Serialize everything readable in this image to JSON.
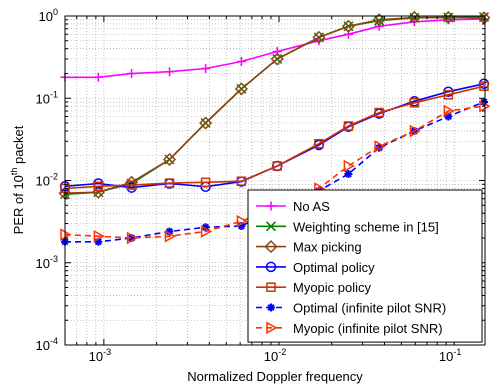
{
  "chart_data": {
    "type": "line",
    "xscale": "log",
    "yscale": "log",
    "xlim": [
      0.0006,
      0.15
    ],
    "ylim": [
      0.0001,
      1
    ],
    "xlabel": "Normalized Doppler frequency",
    "ylabel": "PER of 10th packet",
    "ylabel_parts": {
      "before": "PER of 10",
      "sup": "th",
      "after": " packet"
    },
    "grid": true,
    "legend_position": "bottom-right",
    "x_ticks": [
      {
        "value": 0.001,
        "base": "10",
        "exp": "-3"
      },
      {
        "value": 0.01,
        "base": "10",
        "exp": "-2"
      },
      {
        "value": 0.1,
        "base": "10",
        "exp": "-1"
      }
    ],
    "y_ticks": [
      {
        "value": 0.0001,
        "base": "10",
        "exp": "-4"
      },
      {
        "value": 0.001,
        "base": "10",
        "exp": "-3"
      },
      {
        "value": 0.01,
        "base": "10",
        "exp": "-2"
      },
      {
        "value": 0.1,
        "base": "10",
        "exp": "-1"
      },
      {
        "value": 1,
        "base": "10",
        "exp": "0"
      }
    ],
    "series": [
      {
        "name": "No AS",
        "color": "#ff00ff",
        "dash": "solid",
        "marker": "plus",
        "x": [
          0.0006,
          0.00093,
          0.00144,
          0.00237,
          0.00381,
          0.0061,
          0.00977,
          0.0169,
          0.0249,
          0.0373,
          0.0593,
          0.0926,
          0.148
        ],
        "y": [
          0.18,
          0.18,
          0.2,
          0.21,
          0.23,
          0.28,
          0.37,
          0.5,
          0.6,
          0.75,
          0.85,
          0.9,
          0.92
        ]
      },
      {
        "name": "Weighting scheme in [15]",
        "color": "#008000",
        "dash": "solid",
        "marker": "x",
        "x": [
          0.0006,
          0.00093,
          0.00144,
          0.00237,
          0.00381,
          0.0061,
          0.00977,
          0.0169,
          0.0249,
          0.0373,
          0.0593,
          0.0926,
          0.148
        ],
        "y": [
          0.0068,
          0.0072,
          0.0092,
          0.018,
          0.05,
          0.13,
          0.3,
          0.55,
          0.75,
          0.88,
          0.95,
          0.96,
          0.97
        ]
      },
      {
        "name": "Max picking",
        "color": "#8b4513",
        "dash": "solid",
        "marker": "diamond",
        "x": [
          0.0006,
          0.00093,
          0.00144,
          0.00237,
          0.00381,
          0.0061,
          0.00977,
          0.0169,
          0.0249,
          0.0373,
          0.0593,
          0.0926,
          0.148
        ],
        "y": [
          0.007,
          0.0072,
          0.0095,
          0.018,
          0.05,
          0.13,
          0.3,
          0.55,
          0.75,
          0.9,
          0.96,
          0.96,
          0.95
        ]
      },
      {
        "name": "Optimal policy",
        "color": "#0000ff",
        "dash": "solid",
        "marker": "circle",
        "x": [
          0.0006,
          0.00093,
          0.00144,
          0.00237,
          0.00381,
          0.0061,
          0.00977,
          0.0169,
          0.0249,
          0.0373,
          0.0593,
          0.0926,
          0.148
        ],
        "y": [
          0.0085,
          0.0092,
          0.0082,
          0.0092,
          0.0084,
          0.0097,
          0.015,
          0.027,
          0.045,
          0.065,
          0.092,
          0.12,
          0.15
        ]
      },
      {
        "name": "Myopic policy",
        "color": "#cc3300",
        "dash": "solid",
        "marker": "square",
        "x": [
          0.0006,
          0.00093,
          0.00144,
          0.00237,
          0.00381,
          0.0061,
          0.00977,
          0.0169,
          0.0249,
          0.0373,
          0.0593,
          0.0926,
          0.148
        ],
        "y": [
          0.008,
          0.0085,
          0.0088,
          0.0093,
          0.0095,
          0.0098,
          0.015,
          0.028,
          0.046,
          0.067,
          0.088,
          0.11,
          0.14
        ]
      },
      {
        "name": "Optimal (infinite pilot SNR)",
        "color": "#0000ff",
        "dash": "dashed",
        "marker": "star",
        "x": [
          0.0006,
          0.00093,
          0.00144,
          0.00237,
          0.00381,
          0.0061,
          0.00977,
          0.0169,
          0.0249,
          0.0373,
          0.0593,
          0.0926,
          0.148
        ],
        "y": [
          0.0018,
          0.0018,
          0.002,
          0.0024,
          0.0027,
          0.0028,
          0.0045,
          0.0075,
          0.012,
          0.025,
          0.04,
          0.06,
          0.09
        ]
      },
      {
        "name": "Myopic (infinite pilot SNR)",
        "color": "#ff3300",
        "dash": "dashed",
        "marker": "triangle-right",
        "x": [
          0.0006,
          0.00093,
          0.00144,
          0.00237,
          0.00381,
          0.0061,
          0.00977,
          0.0169,
          0.0249,
          0.0373,
          0.0593,
          0.0926,
          0.148
        ],
        "y": [
          0.0022,
          0.0021,
          0.002,
          0.0021,
          0.0024,
          0.0032,
          0.0048,
          0.008,
          0.015,
          0.026,
          0.04,
          0.07,
          0.08
        ]
      }
    ]
  }
}
